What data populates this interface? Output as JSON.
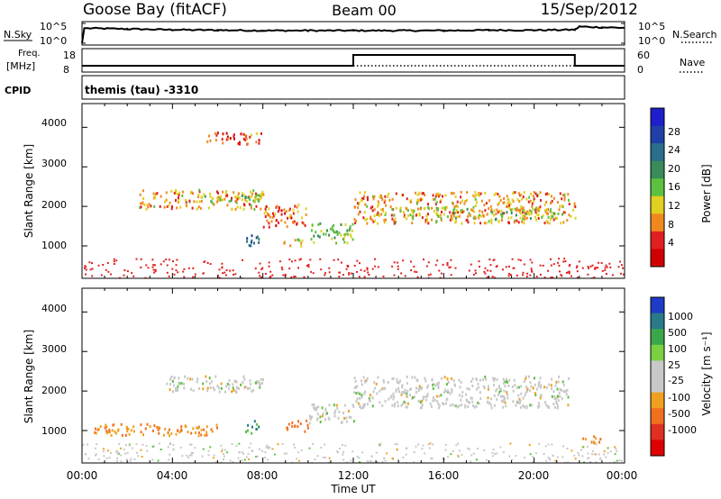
{
  "header": {
    "station": "Goose Bay (fitACF)",
    "beam": "Beam 00",
    "date": "15/Sep/2012"
  },
  "summary_panel": {
    "nsky_label": "N.Sky",
    "nsearch_label": "N.Search",
    "noise_ticks": [
      "10^5",
      "10^0"
    ],
    "freq_label_line1": "Freq.",
    "freq_label_line2": "[MHz]",
    "freq_ticks": [
      "18",
      "8"
    ],
    "nave_label": "Nave",
    "nave_ticks": [
      "60",
      "0"
    ],
    "cpid_label": "CPID",
    "cpid_value": "themis (tau) -3310"
  },
  "power_panel": {
    "ylabel": "Slant Range [km]",
    "yticks": [
      "4000",
      "3000",
      "2000",
      "1000"
    ],
    "colorbar_label": "Power [dB]",
    "colorbar_ticks": [
      "28",
      "24",
      "20",
      "16",
      "12",
      "8",
      "4"
    ],
    "colorbar_colors": [
      "#1e1ecc",
      "#2040a8",
      "#2a6e8c",
      "#3a8a5a",
      "#5cc040",
      "#e0d020",
      "#f08820",
      "#e02020",
      "#d00000"
    ]
  },
  "velocity_panel": {
    "ylabel": "Slant Range [km]",
    "yticks": [
      "4000",
      "3000",
      "2000",
      "1000"
    ],
    "colorbar_label": "Velocity [m s⁻¹]",
    "colorbar_ticks": [
      "1000",
      "500",
      "100",
      "25",
      "-25",
      "-100",
      "-500",
      "-1000"
    ],
    "colorbar_colors": [
      "#1e3cc8",
      "#2a7a8a",
      "#3aa84a",
      "#7ad040",
      "#c8c8c8",
      "#c8c8c8",
      "#f0a020",
      "#f07020",
      "#e03020",
      "#e00000"
    ]
  },
  "xaxis": {
    "label": "Time UT",
    "ticks": [
      "00:00",
      "04:00",
      "08:00",
      "12:00",
      "16:00",
      "20:00",
      "00:00"
    ]
  },
  "chart_data": [
    {
      "type": "line",
      "name": "noise-sky",
      "x_hours": [
        0,
        0.1,
        2,
        4,
        6,
        8,
        10,
        12,
        14,
        16,
        18,
        20,
        21.8,
        22,
        23,
        24
      ],
      "values_log10": [
        0,
        3.8,
        3.6,
        3.4,
        3.3,
        3.2,
        3.2,
        3.2,
        3.2,
        3.2,
        3.3,
        3.3,
        3.4,
        4.2,
        4.0,
        3.9
      ]
    },
    {
      "type": "line",
      "name": "frequency",
      "x_hours": [
        0,
        12,
        12,
        21.8,
        21.8,
        24
      ],
      "values_mhz": [
        10.5,
        10.5,
        15.5,
        15.5,
        10.5,
        10.5
      ]
    },
    {
      "type": "heatmap",
      "name": "power",
      "units": "dB",
      "xlim_hours": [
        0,
        24
      ],
      "ylim_km": [
        180,
        4600
      ],
      "features": [
        {
          "t": [
            2.5,
            8
          ],
          "r": [
            1950,
            2450
          ],
          "value": 10
        },
        {
          "t": [
            5,
            8
          ],
          "r": [
            2150,
            2350
          ],
          "value": 14
        },
        {
          "t": [
            8,
            10
          ],
          "r": [
            1500,
            2100
          ],
          "value": 8
        },
        {
          "t": [
            10,
            12
          ],
          "r": [
            1100,
            1600
          ],
          "value": 16
        },
        {
          "t": [
            12,
            21.8
          ],
          "r": [
            1600,
            2400
          ],
          "value": 10
        },
        {
          "t": [
            14,
            21
          ],
          "r": [
            1700,
            2000
          ],
          "value": 14
        },
        {
          "t": [
            7.2,
            7.8
          ],
          "r": [
            900,
            1300
          ],
          "value": 24
        },
        {
          "t": [
            8.8,
            9.8
          ],
          "r": [
            1000,
            1200
          ],
          "value": 12
        },
        {
          "t": [
            5.5,
            8
          ],
          "r": [
            3600,
            3900
          ],
          "value": 6
        }
      ]
    },
    {
      "type": "heatmap",
      "name": "velocity",
      "units": "m/s",
      "xlim_hours": [
        0,
        24
      ],
      "ylim_km": [
        180,
        4600
      ],
      "features": [
        {
          "t": [
            3.5,
            8
          ],
          "r": [
            2000,
            2400
          ],
          "value": 0
        },
        {
          "t": [
            12,
            21.5
          ],
          "r": [
            1600,
            2400
          ],
          "value": 0
        },
        {
          "t": [
            10,
            12
          ],
          "r": [
            1200,
            1700
          ],
          "value": 0
        },
        {
          "t": [
            0.5,
            6
          ],
          "r": [
            900,
            1200
          ],
          "value": -100
        },
        {
          "t": [
            7.2,
            7.8
          ],
          "r": [
            950,
            1300
          ],
          "value": 100
        },
        {
          "t": [
            9,
            10
          ],
          "r": [
            1000,
            1300
          ],
          "value": -300
        },
        {
          "t": [
            22,
            23
          ],
          "r": [
            700,
            900
          ],
          "value": -100
        }
      ]
    }
  ]
}
